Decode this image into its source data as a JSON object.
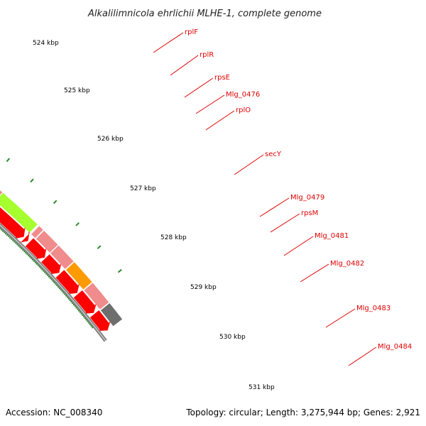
{
  "title": "Alkalilimnicola ehrlichii MLHE-1, complete genome",
  "footer": {
    "accession": "Accession: NC_008340",
    "summary": "Topology: circular; Length: 3,275,944 bp; Genes: 2,921"
  },
  "colors": {
    "backbone": "#808080",
    "cds_strand": "#ff0000",
    "gene_strand": "#f08c8c",
    "secY": "#a6ff2e",
    "Mlg_0483": "#ff9a00",
    "last_gene": "#6e6e6e",
    "ticks": "#2b8a2b",
    "labels": "#e00000"
  },
  "kbp_labels": [
    "524 kbp",
    "525 kbp",
    "526 kbp",
    "527 kbp",
    "528 kbp",
    "529 kbp",
    "530 kbp",
    "531 kbp"
  ],
  "genes": [
    {
      "name": "rplF"
    },
    {
      "name": "rplR"
    },
    {
      "name": "rpsE"
    },
    {
      "name": "Mlg_0476"
    },
    {
      "name": "rplO"
    },
    {
      "name": "secY"
    },
    {
      "name": "Mlg_0479"
    },
    {
      "name": "rpsM"
    },
    {
      "name": "Mlg_0481"
    },
    {
      "name": "Mlg_0482"
    },
    {
      "name": "Mlg_0483"
    },
    {
      "name": "Mlg_0484"
    }
  ]
}
